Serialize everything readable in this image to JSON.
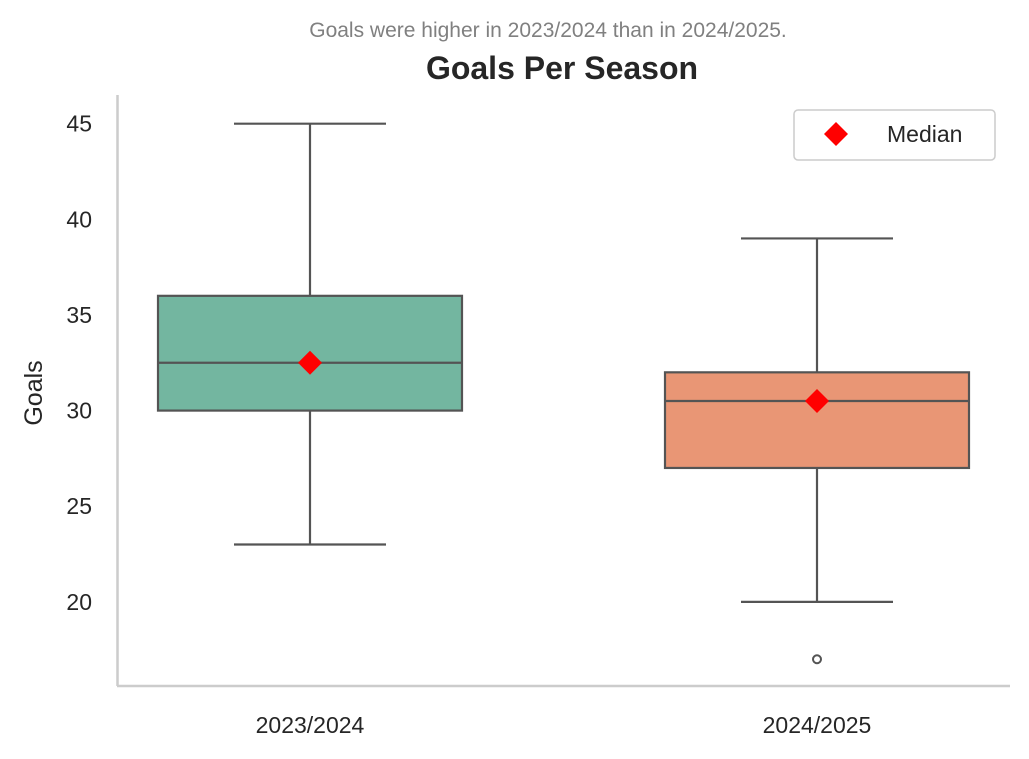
{
  "chart_data": {
    "type": "box",
    "title": "Goals Per Season",
    "subtitle": "Goals were higher in 2023/2024 than in 2024/2025.",
    "xlabel": "",
    "ylabel": "Goals",
    "ylim": [
      15.6,
      46.5
    ],
    "yticks": [
      20,
      25,
      30,
      35,
      40,
      45
    ],
    "categories": [
      "2023/2024",
      "2024/2025"
    ],
    "boxes": [
      {
        "category": "2023/2024",
        "whisker_low": 23,
        "q1": 30,
        "median": 32.5,
        "q3": 36,
        "whisker_high": 45,
        "outliers": [],
        "color": "#73b6a0"
      },
      {
        "category": "2024/2025",
        "whisker_low": 20,
        "q1": 27,
        "median": 30.5,
        "q3": 32,
        "whisker_high": 39,
        "outliers": [
          17
        ],
        "color": "#e99675"
      }
    ],
    "median_marker_color": "#ff0000",
    "legend": {
      "entries": [
        "Median"
      ],
      "placement": "top-right"
    },
    "grid": false
  }
}
